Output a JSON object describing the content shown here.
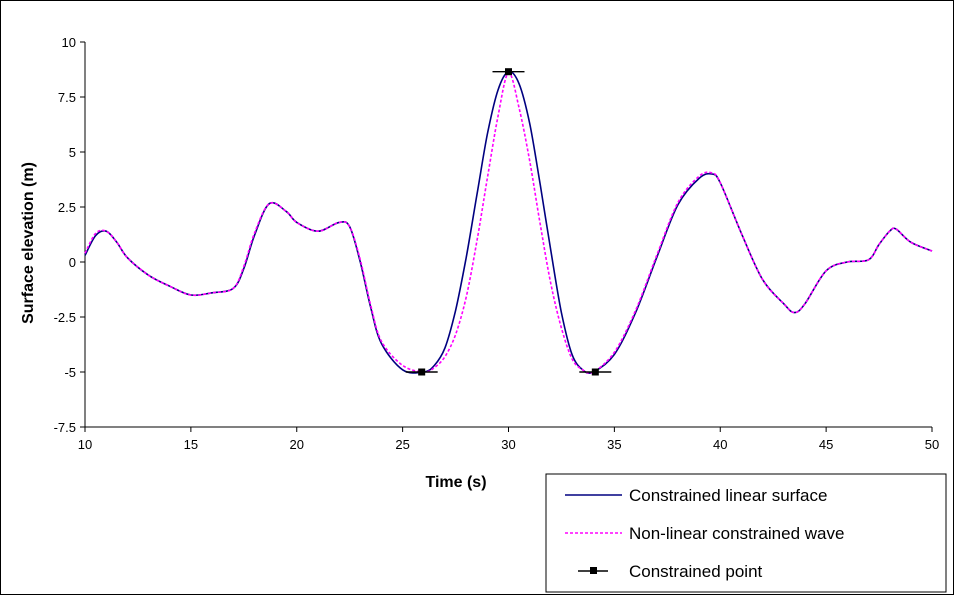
{
  "chart_data": {
    "type": "line",
    "xlabel": "Time (s)",
    "ylabel": "Surface elevation (m)",
    "xlim": [
      10,
      50
    ],
    "ylim": [
      -7.5,
      10
    ],
    "xticks": [
      10,
      15,
      20,
      25,
      30,
      35,
      40,
      45,
      50
    ],
    "yticks": [
      -7.5,
      -5,
      -2.5,
      0,
      2.5,
      5,
      7.5,
      10
    ],
    "ytick_labels": [
      "-7.5",
      "-5",
      "-2.5",
      "0",
      "2.5",
      "5",
      "7.5",
      "10"
    ],
    "grid": false,
    "legend_position": "bottom-right",
    "colors": {
      "linear": "#000080",
      "nonlinear": "#ff00ff",
      "points": "#000000"
    },
    "series": [
      {
        "name": "Constrained linear surface",
        "style": "solid",
        "x": [
          10,
          10.5,
          11,
          11.5,
          12,
          13,
          14,
          15,
          16,
          17,
          17.5,
          18,
          18.7,
          19.5,
          20,
          21,
          22,
          22.5,
          23,
          23.5,
          24,
          25,
          26,
          26.5,
          27,
          27.5,
          28,
          28.5,
          29,
          29.5,
          30,
          30.5,
          31,
          31.5,
          32,
          32.5,
          33,
          33.5,
          34,
          35,
          36,
          37,
          38,
          39,
          39.6,
          40,
          41,
          42,
          43,
          43.5,
          44,
          45,
          46,
          47,
          47.5,
          48,
          48.3,
          49,
          50
        ],
        "values": [
          0.3,
          1.2,
          1.4,
          0.9,
          0.2,
          -0.6,
          -1.1,
          -1.5,
          -1.4,
          -1.2,
          -0.3,
          1.2,
          2.65,
          2.3,
          1.8,
          1.4,
          1.8,
          1.6,
          0,
          -2.1,
          -3.7,
          -4.9,
          -5.0,
          -4.7,
          -3.9,
          -2.2,
          0.2,
          3.0,
          5.8,
          7.8,
          8.65,
          8.1,
          6.3,
          3.5,
          0.5,
          -2.3,
          -4.2,
          -4.9,
          -5.0,
          -4.2,
          -2.3,
          0.2,
          2.6,
          3.8,
          4.0,
          3.6,
          1.3,
          -0.8,
          -1.9,
          -2.3,
          -1.9,
          -0.4,
          0,
          0.1,
          0.8,
          1.4,
          1.5,
          0.9,
          0.5
        ]
      },
      {
        "name": "Non-linear constrained wave",
        "style": "dotted",
        "x": [
          10,
          10.5,
          11,
          11.5,
          12,
          13,
          14,
          15,
          16,
          17,
          17.5,
          18,
          18.7,
          19.5,
          20,
          21,
          22,
          22.5,
          23,
          23.5,
          24,
          25,
          26,
          26.5,
          27,
          27.5,
          28,
          28.5,
          29,
          29.5,
          30,
          30.5,
          31,
          31.5,
          32,
          32.5,
          33,
          33.5,
          34,
          35,
          36,
          37,
          38,
          39,
          39.6,
          40,
          41,
          42,
          43,
          43.5,
          44,
          45,
          46,
          47,
          47.5,
          48,
          48.3,
          49,
          50
        ],
        "values": [
          0.4,
          1.3,
          1.4,
          0.9,
          0.2,
          -0.6,
          -1.1,
          -1.5,
          -1.4,
          -1.2,
          -0.2,
          1.3,
          2.65,
          2.3,
          1.8,
          1.4,
          1.8,
          1.6,
          0.1,
          -2.0,
          -3.6,
          -4.7,
          -5.0,
          -4.8,
          -4.3,
          -3.3,
          -1.6,
          0.9,
          3.8,
          6.6,
          8.6,
          7.0,
          4.6,
          1.7,
          -1.0,
          -3.0,
          -4.4,
          -4.9,
          -5.0,
          -4.1,
          -2.2,
          0.3,
          2.7,
          3.9,
          4.05,
          3.6,
          1.3,
          -0.8,
          -1.9,
          -2.3,
          -1.9,
          -0.4,
          0,
          0.1,
          0.8,
          1.4,
          1.5,
          0.9,
          0.5
        ]
      },
      {
        "name": "Constrained point",
        "style": "marker",
        "x": [
          25.9,
          30.0,
          34.1
        ],
        "values": [
          -5.0,
          8.65,
          -5.0
        ]
      }
    ]
  }
}
